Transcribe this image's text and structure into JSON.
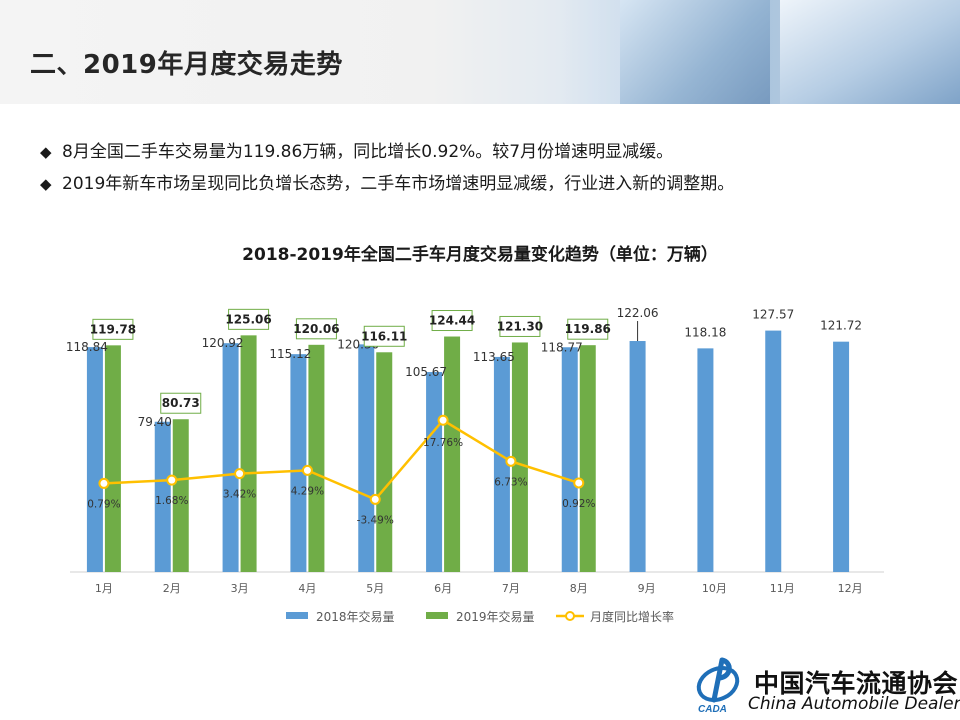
{
  "header": {
    "title": "二、2019年月度交易走势"
  },
  "bullets": [
    "8月全国二手车交易量为119.86万辆，同比增长0.92%。较7月份增速明显减缓。",
    "2019年新车市场呈现同比负增长态势，二手车市场增速明显减缓，行业进入新的调整期。"
  ],
  "bullet_marker": "◆",
  "chart_data": {
    "type": "bar",
    "title": "2018-2019年全国二手车月度交易量变化趋势（单位：万辆）",
    "categories": [
      "1月",
      "2月",
      "3月",
      "4月",
      "5月",
      "6月",
      "7月",
      "8月",
      "9月",
      "10月",
      "11月",
      "12月"
    ],
    "series": [
      {
        "name": "2018年交易量",
        "type": "bar",
        "color": "#5b9bd5",
        "values": [
          118.84,
          79.4,
          120.92,
          115.12,
          120.3,
          105.67,
          113.65,
          118.77,
          122.06,
          118.18,
          127.57,
          121.72
        ]
      },
      {
        "name": "2019年交易量",
        "type": "bar",
        "color": "#70ad47",
        "values": [
          119.78,
          80.73,
          125.06,
          120.06,
          116.11,
          124.44,
          121.3,
          119.86,
          null,
          null,
          null,
          null
        ]
      },
      {
        "name": "月度同比增长率",
        "type": "line",
        "color": "#ffc000",
        "unit": "%",
        "values": [
          0.79,
          1.68,
          3.42,
          4.29,
          -3.49,
          17.76,
          6.73,
          0.92,
          null,
          null,
          null,
          null
        ]
      }
    ],
    "legend_position": "bottom",
    "bar_value_labels": [
      "118.84",
      "79.40",
      "120.92",
      "115.12",
      "120.30",
      "105.67",
      "113.65",
      "118.77",
      "122.06",
      "118.18",
      "127.57",
      "121.72"
    ],
    "bar2_value_labels": [
      "119.78",
      "80.73",
      "125.06",
      "120.06",
      "116.11",
      "124.44",
      "121.30",
      "119.86"
    ],
    "rate_labels": [
      "0.79%",
      "1.68%",
      "3.42%",
      "4.29%",
      "-3.49%",
      "17.76%",
      "6.73%",
      "0.92%"
    ],
    "bar_ylim": [
      0,
      130
    ],
    "rate_ylim": [
      -23,
      42
    ],
    "grid": false
  },
  "logo": {
    "name_cn": "中国汽车流通协会",
    "name_en": "China Automobile Dealers",
    "mark_text": "CADA"
  }
}
